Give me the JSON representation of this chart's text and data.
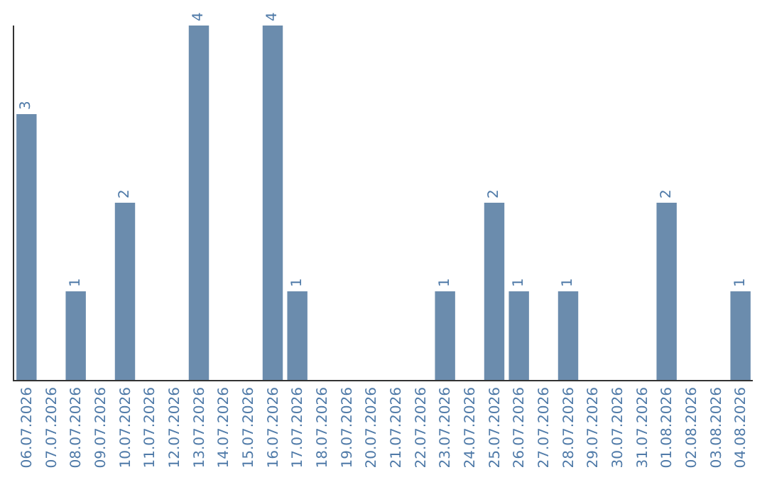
{
  "chart_data": {
    "type": "bar",
    "categories": [
      "06.07.2026",
      "07.07.2026",
      "08.07.2026",
      "09.07.2026",
      "10.07.2026",
      "11.07.2026",
      "12.07.2026",
      "13.07.2026",
      "14.07.2026",
      "15.07.2026",
      "16.07.2026",
      "17.07.2026",
      "18.07.2026",
      "19.07.2026",
      "20.07.2026",
      "21.07.2026",
      "22.07.2026",
      "23.07.2026",
      "24.07.2026",
      "25.07.2026",
      "26.07.2026",
      "27.07.2026",
      "28.07.2026",
      "29.07.2026",
      "30.07.2026",
      "31.07.2026",
      "01.08.2026",
      "02.08.2026",
      "03.08.2026",
      "04.08.2026"
    ],
    "values": [
      3,
      0,
      1,
      0,
      2,
      0,
      0,
      4,
      0,
      0,
      4,
      1,
      0,
      0,
      0,
      0,
      0,
      1,
      0,
      2,
      1,
      0,
      1,
      0,
      0,
      0,
      2,
      0,
      0,
      1
    ],
    "value_labels": [
      "3",
      null,
      "1",
      null,
      "2",
      null,
      null,
      "4",
      null,
      null,
      "4",
      "1",
      null,
      null,
      null,
      null,
      null,
      "1",
      null,
      "2",
      "1",
      null,
      "1",
      null,
      null,
      null,
      "2",
      null,
      null,
      "1"
    ],
    "color": "#6b8cad",
    "ylim": [
      0,
      4
    ],
    "grid": false,
    "legend": false,
    "tick_labels": "x"
  }
}
